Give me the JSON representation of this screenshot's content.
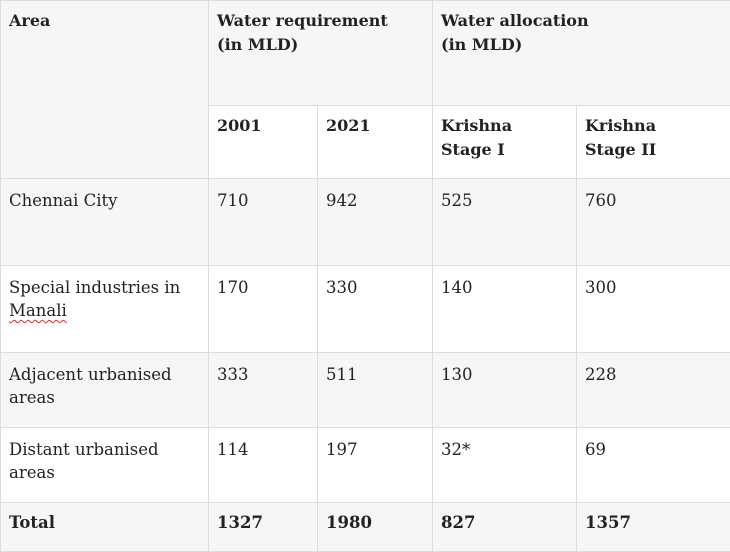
{
  "table": {
    "header": {
      "area": "Area",
      "requirement_group": "Water requirement (in MLD)",
      "allocation_group": "Water allocation (in MLD)",
      "subcolumns": [
        "2001",
        "2021",
        "Krishna Stage I",
        "Krishna Stage II"
      ]
    },
    "rows": [
      {
        "area": "Chennai City",
        "req_2001": "710",
        "req_2021": "942",
        "stage1": "525",
        "stage2": "760"
      },
      {
        "area_main": "Special industries in ",
        "area_flagged": "Manali",
        "req_2001": "170",
        "req_2021": "330",
        "stage1": "140",
        "stage2": "300"
      },
      {
        "area": "Adjacent urbanised areas",
        "req_2001": "333",
        "req_2021": "511",
        "stage1": "130",
        "stage2": "228"
      },
      {
        "area": "Distant urbanised areas",
        "req_2001": "114",
        "req_2021": "197",
        "stage1": "32*",
        "stage2": "69"
      }
    ],
    "total": {
      "label": "Total",
      "req_2001": "1327",
      "req_2021": "1980",
      "stage1": "827",
      "stage2": "1357"
    }
  }
}
